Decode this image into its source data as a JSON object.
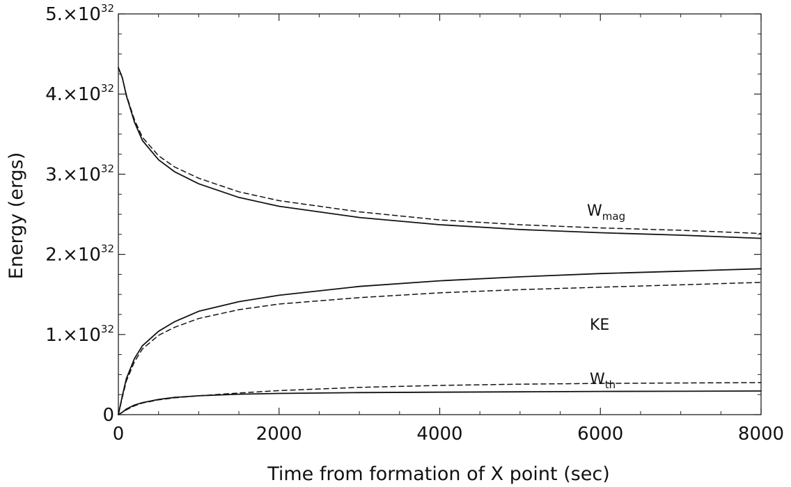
{
  "chart_data": {
    "type": "line",
    "xlabel": "Time from formation of X point (sec)",
    "ylabel": "Energy (ergs)",
    "xlim": [
      0,
      8000
    ],
    "ylim": [
      0,
      5e+32
    ],
    "x_ticks": [
      {
        "value": 0,
        "label": "0"
      },
      {
        "value": 2000,
        "label": "2000"
      },
      {
        "value": 4000,
        "label": "4000"
      },
      {
        "value": 6000,
        "label": "6000"
      },
      {
        "value": 8000,
        "label": "8000"
      }
    ],
    "y_ticks": [
      {
        "value": 0,
        "mantissa": "0",
        "exp": ""
      },
      {
        "value": 1e+32,
        "mantissa": "1.×10",
        "exp": "32"
      },
      {
        "value": 2e+32,
        "mantissa": "2.×10",
        "exp": "32"
      },
      {
        "value": 3e+32,
        "mantissa": "3.×10",
        "exp": "32"
      },
      {
        "value": 4e+32,
        "mantissa": "4.×10",
        "exp": "32"
      },
      {
        "value": 5e+32,
        "mantissa": "5.×10",
        "exp": "32"
      }
    ],
    "grid": false,
    "series": [
      {
        "name": "W_mag",
        "label_main": "W",
        "label_sub": "mag",
        "style": "solid",
        "x": [
          0,
          50,
          100,
          200,
          300,
          500,
          700,
          1000,
          1500,
          2000,
          3000,
          4000,
          5000,
          6000,
          7000,
          8000
        ],
        "y": [
          4.33e+32,
          4.2e+32,
          3.98e+32,
          3.65e+32,
          3.42e+32,
          3.18e+32,
          3.03e+32,
          2.88e+32,
          2.71e+32,
          2.6e+32,
          2.46e+32,
          2.37e+32,
          2.31e+32,
          2.27e+32,
          2.24e+32,
          2.2e+32
        ]
      },
      {
        "name": "W_mag (dashed)",
        "style": "dashed",
        "x": [
          0,
          50,
          100,
          200,
          300,
          500,
          700,
          1000,
          1500,
          2000,
          3000,
          4000,
          5000,
          6000,
          7000,
          8000
        ],
        "y": [
          4.33e+32,
          4.2e+32,
          3.99e+32,
          3.68e+32,
          3.46e+32,
          3.23e+32,
          3.09e+32,
          2.95e+32,
          2.78e+32,
          2.67e+32,
          2.53e+32,
          2.43e+32,
          2.37e+32,
          2.33e+32,
          2.3e+32,
          2.26e+32
        ]
      },
      {
        "name": "KE",
        "label_main": "KE",
        "label_sub": "",
        "style": "solid",
        "x": [
          0,
          25,
          50,
          100,
          200,
          300,
          500,
          700,
          1000,
          1500,
          2000,
          3000,
          4000,
          5000,
          6000,
          7000,
          8000
        ],
        "y": [
          0,
          1.2e+31,
          2.4e+31,
          4.5e+31,
          7e+31,
          8.6e+31,
          1.04e+32,
          1.16e+32,
          1.29e+32,
          1.41e+32,
          1.49e+32,
          1.6e+32,
          1.67e+32,
          1.72e+32,
          1.76e+32,
          1.79e+32,
          1.82e+32
        ]
      },
      {
        "name": "KE (dashed)",
        "style": "dashed",
        "x": [
          0,
          25,
          50,
          100,
          200,
          300,
          500,
          700,
          1000,
          1500,
          2000,
          3000,
          4000,
          5000,
          6000,
          7000,
          8000
        ],
        "y": [
          0,
          1.1e+31,
          2.2e+31,
          4.2e+31,
          6.6e+31,
          8.2e+31,
          9.9e+31,
          1.09e+32,
          1.2e+32,
          1.31e+32,
          1.38e+32,
          1.46e+32,
          1.52e+32,
          1.56e+32,
          1.59e+32,
          1.62e+32,
          1.65e+32
        ]
      },
      {
        "name": "W_th",
        "label_main": "W",
        "label_sub": "th",
        "style": "solid",
        "x": [
          0,
          50,
          100,
          200,
          300,
          500,
          700,
          1000,
          1500,
          2000,
          3000,
          4000,
          5000,
          6000,
          7000,
          8000
        ],
        "y": [
          0,
          3e+30,
          7e+30,
          1.2e+31,
          1.5e+31,
          1.9e+31,
          2.15e+31,
          2.35e+31,
          2.55e+31,
          2.65e+31,
          2.75e+31,
          2.8e+31,
          2.85e+31,
          2.9e+31,
          2.92e+31,
          2.95e+31
        ]
      },
      {
        "name": "W_th (dashed)",
        "style": "dashed",
        "x": [
          0,
          50,
          100,
          200,
          300,
          500,
          700,
          1000,
          1500,
          2000,
          3000,
          4000,
          5000,
          6000,
          7000,
          8000
        ],
        "y": [
          0,
          3e+30,
          6e+30,
          1.1e+31,
          1.45e+31,
          1.85e+31,
          2.1e+31,
          2.35e+31,
          2.7e+31,
          3e+31,
          3.4e+31,
          3.65e+31,
          3.8e+31,
          3.9e+31,
          3.95e+31,
          4e+31
        ]
      }
    ],
    "annotations": [
      {
        "series": "W_mag",
        "main": "W",
        "sub": "mag",
        "x": 6000,
        "y": 2.5e+32
      },
      {
        "series": "KE",
        "main": "KE",
        "sub": "",
        "x": 6000,
        "y": 1.1e+32
      },
      {
        "series": "W_th",
        "main": "W",
        "sub": "th",
        "x": 6000,
        "y": 6e+31
      }
    ]
  }
}
